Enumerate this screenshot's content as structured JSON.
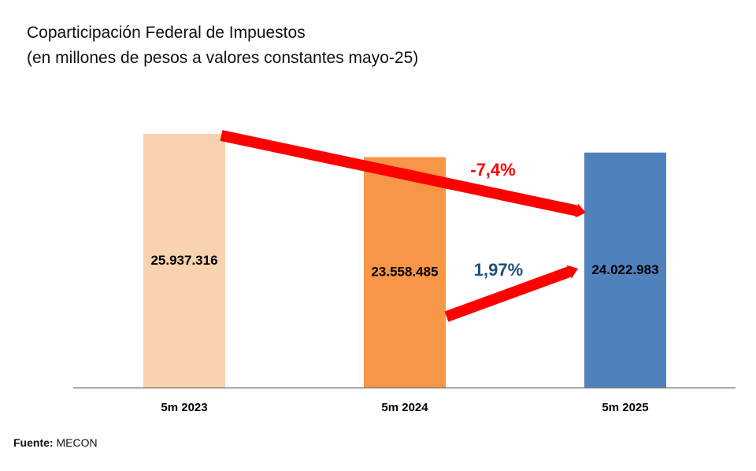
{
  "chart_data": {
    "type": "bar",
    "title": "Coparticipación Federal de Impuestos",
    "subtitle": "(en millones de pesos a valores constantes mayo-25)",
    "categories": [
      "5m 2023",
      "5m 2024",
      "5m 2025"
    ],
    "values": [
      25937316,
      23558485,
      24022983
    ],
    "value_labels": [
      "25.937.316",
      "23.558.485",
      "24.022.983"
    ],
    "colors": [
      "#f9d2b0",
      "#f79646",
      "#4f81bd"
    ],
    "ylim": [
      0,
      26900000
    ],
    "annotations": [
      {
        "text": "-7,4%",
        "from": "5m 2023",
        "to": "5m 2025",
        "color": "#ff0000"
      },
      {
        "text": "1,97%",
        "from": "5m 2024",
        "to": "5m 2025",
        "color": "#1f4e79"
      }
    ],
    "arrow_color": "#ff0000"
  },
  "source": {
    "label": "Fuente:",
    "value": "MECON"
  }
}
